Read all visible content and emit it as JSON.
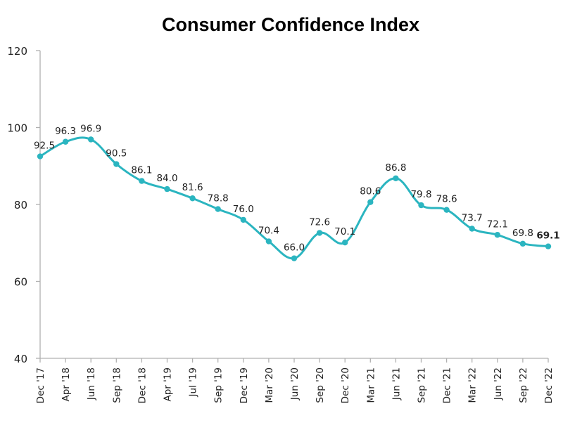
{
  "chart_data": {
    "type": "line",
    "title": "Consumer Confidence Index",
    "xlabel": "",
    "ylabel": "",
    "ylim": [
      40,
      120
    ],
    "yticks": [
      40,
      60,
      80,
      100,
      120
    ],
    "grid": false,
    "legend": "none",
    "line_color": "#2BB5C0",
    "categories": [
      "Dec '17",
      "Apr '18",
      "Jun '18",
      "Sep '18",
      "Dec '18",
      "Apr '19",
      "Jul '19",
      "Sep '19",
      "Dec '19",
      "Mar '20",
      "Jun '20",
      "Sep '20",
      "Dec '20",
      "Mar '21",
      "Jun '21",
      "Sep '21",
      "Dec '21",
      "Mar '22",
      "Jun '22",
      "Sep '22",
      "Dec '22"
    ],
    "series": [
      {
        "name": "Consumer Confidence Index",
        "values": [
          92.5,
          96.3,
          96.9,
          90.5,
          86.1,
          84.0,
          81.6,
          78.8,
          76.0,
          70.4,
          66.0,
          72.6,
          70.1,
          80.6,
          86.8,
          79.8,
          78.6,
          73.7,
          72.1,
          69.8,
          69.1
        ],
        "labels": [
          "92.5",
          "96.3",
          "96.9",
          "90.5",
          "86.1",
          "84.0",
          "81.6",
          "78.8",
          "76.0",
          "70.4",
          "66.0",
          "72.6",
          "70.1",
          "80.6",
          "86.8",
          "79.8",
          "78.6",
          "73.7",
          "72.1",
          "69.8",
          "69.1"
        ]
      }
    ]
  }
}
